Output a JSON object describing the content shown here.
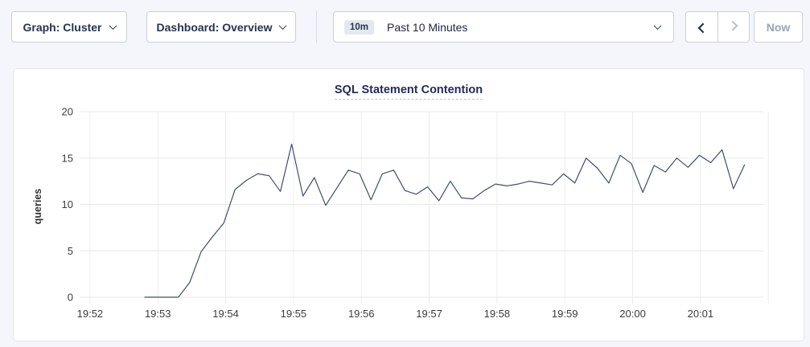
{
  "toolbar": {
    "graph_selector": {
      "label": "Graph: Cluster",
      "icon": "chevron-down-icon"
    },
    "dashboard_selector": {
      "label": "Dashboard: Overview",
      "icon": "chevron-down-icon"
    },
    "time_window_selector": {
      "badge": "10m",
      "selected": "Past 10 Minutes",
      "icon": "chevron-down-icon"
    },
    "history_nav": {
      "prev_icon": "chevron-left-icon",
      "prev_enabled": true,
      "next_icon": "chevron-right-icon",
      "next_enabled": false
    },
    "now_button": {
      "label": "Now",
      "enabled": false
    }
  },
  "chart_data": {
    "type": "line",
    "title": "SQL Statement Contention",
    "xlabel": "",
    "ylabel": "queries",
    "ylim": [
      0,
      20
    ],
    "y_ticks": [
      0,
      5,
      10,
      15,
      20
    ],
    "x_ticks": [
      "19:52",
      "19:53",
      "19:54",
      "19:55",
      "19:56",
      "19:57",
      "19:58",
      "19:59",
      "20:00",
      "20:01"
    ],
    "grid": true,
    "legend_visible": false,
    "line_color": "#3f4e73",
    "series": [
      {
        "name": "queries",
        "start_time": "19:52:50",
        "interval_seconds": 10,
        "values": [
          0,
          0,
          0,
          0,
          1.6,
          4.9,
          6.5,
          8,
          11.6,
          12.6,
          13.3,
          13.1,
          11.4,
          16.5,
          10.9,
          12.9,
          9.9,
          11.8,
          13.7,
          13.3,
          10.5,
          13.3,
          13.7,
          11.5,
          11.1,
          11.9,
          10.4,
          12.5,
          10.7,
          10.6,
          11.5,
          12.2,
          12,
          12.2,
          12.5,
          12.3,
          12.1,
          13.3,
          12.3,
          15,
          13.9,
          12.3,
          15.3,
          14.4,
          11.3,
          14.2,
          13.5,
          15,
          14,
          15.3,
          14.5,
          15.9,
          11.7,
          14.3
        ]
      }
    ]
  }
}
